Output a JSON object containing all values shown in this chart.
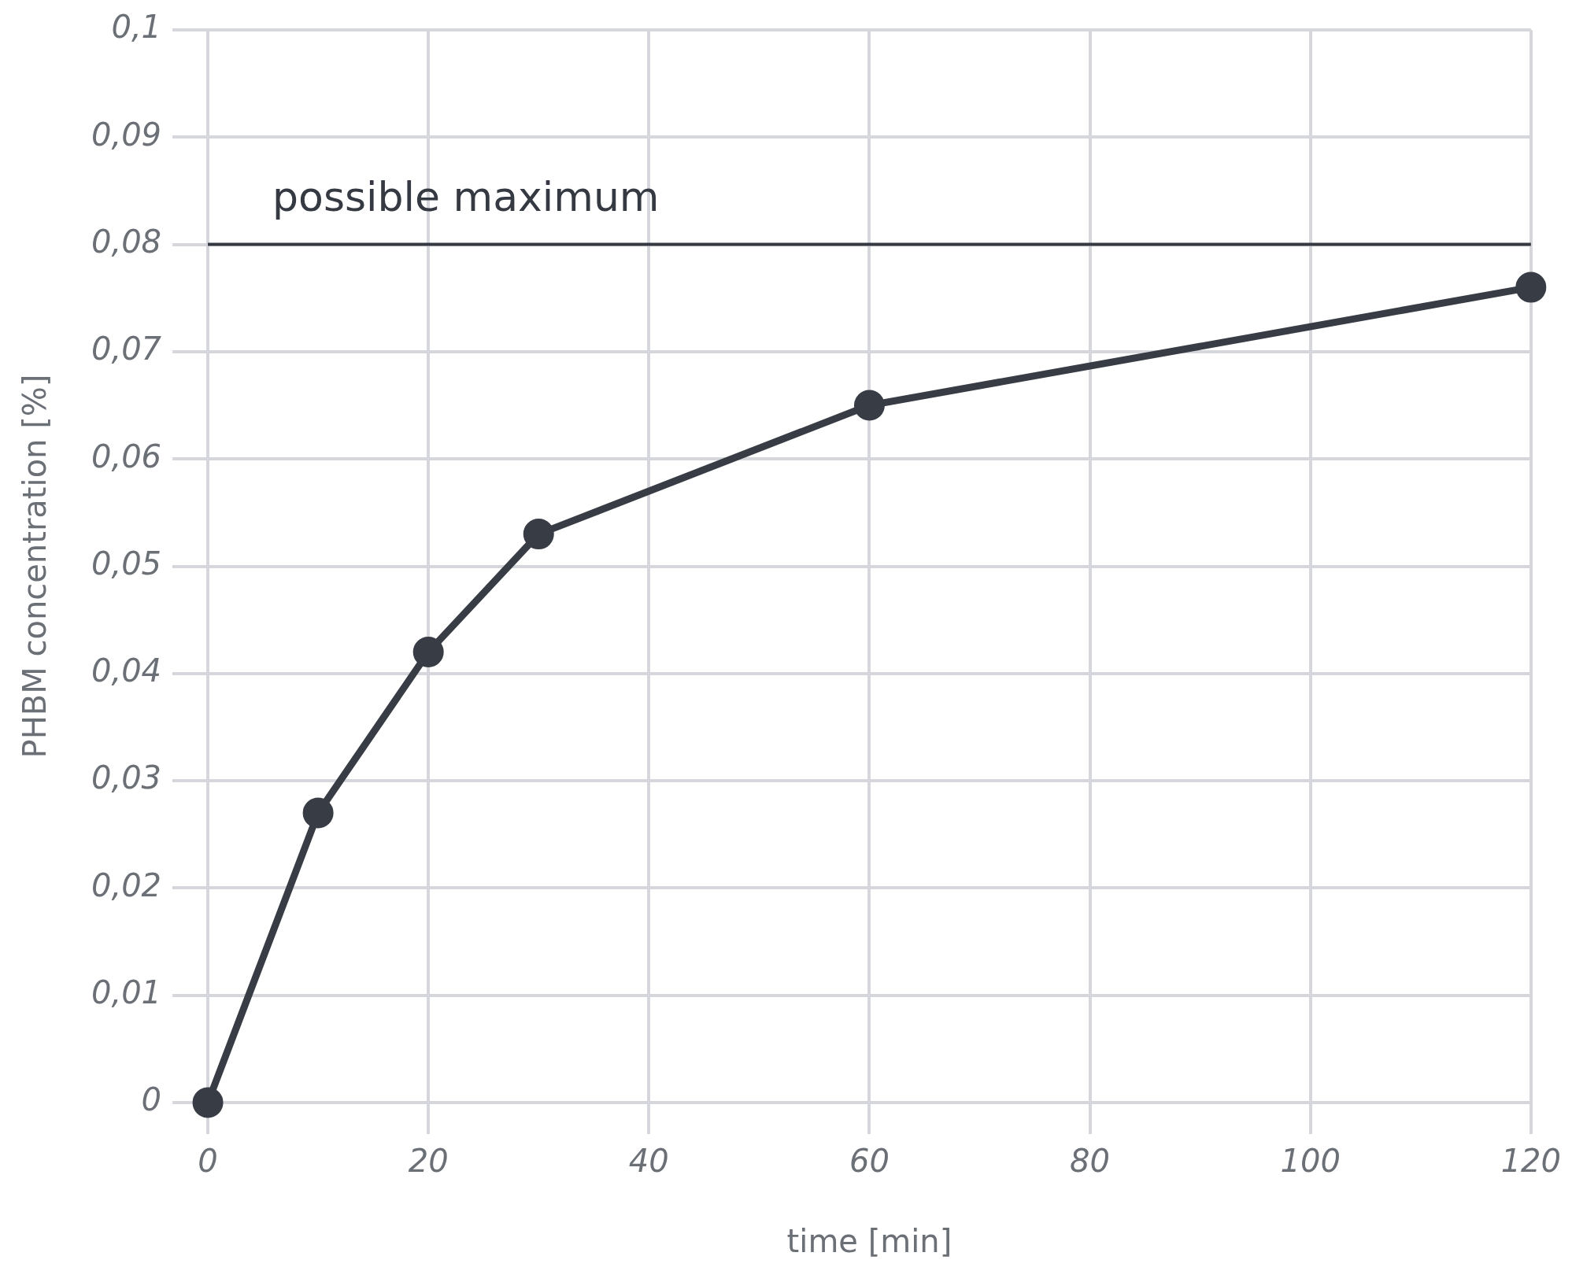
{
  "chart_data": {
    "type": "line",
    "xlabel": "time [min]",
    "ylabel": "PHBM concentration [%]",
    "x": [
      0,
      10,
      20,
      30,
      60,
      120
    ],
    "series": [
      {
        "color": "#383c44",
        "values": [
          0,
          0.027,
          0.042,
          0.053,
          0.065,
          0.076
        ]
      }
    ],
    "xlim": [
      0,
      120
    ],
    "xticks": [
      0,
      20,
      40,
      60,
      80,
      100,
      120
    ],
    "ylim": [
      0,
      0.1
    ],
    "yticks": [
      {
        "value": 0,
        "label": "0"
      },
      {
        "value": 0.01,
        "label": "0,01"
      },
      {
        "value": 0.02,
        "label": "0,02"
      },
      {
        "value": 0.03,
        "label": "0,03"
      },
      {
        "value": 0.04,
        "label": "0,04"
      },
      {
        "value": 0.05,
        "label": "0,05"
      },
      {
        "value": 0.06,
        "label": "0,06"
      },
      {
        "value": 0.07,
        "label": "0,07"
      },
      {
        "value": 0.08,
        "label": "0,08"
      },
      {
        "value": 0.09,
        "label": "0,09"
      },
      {
        "value": 0.1,
        "label": "0,1"
      }
    ],
    "ref_lines": [
      {
        "axis": "y",
        "value": 0.08,
        "label": "possible maximum",
        "color": "#353a42"
      }
    ],
    "grid": true,
    "legend": false,
    "marker": "circle",
    "line_style": "solid"
  }
}
